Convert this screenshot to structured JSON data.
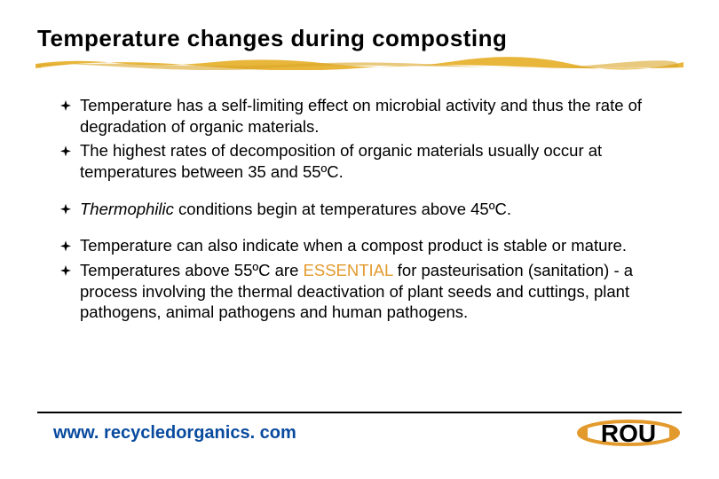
{
  "title": "Temperature changes during composting",
  "underline": {
    "color": "#e8b63a",
    "shadow": "#d9a528"
  },
  "bullets": [
    {
      "text_parts": [
        {
          "t": "Temperature has a self-limiting effect on microbial activity and thus the rate of degradation of organic materials."
        }
      ],
      "gap_below": false
    },
    {
      "text_parts": [
        {
          "t": "The highest rates of decomposition of organic materials usually occur at temperatures between 35 and 55ºC."
        }
      ],
      "gap_below": true
    },
    {
      "text_parts": [
        {
          "t": "Thermophilic",
          "style": "italic"
        },
        {
          "t": " conditions begin at temperatures above 45ºC."
        }
      ],
      "gap_below": true
    },
    {
      "text_parts": [
        {
          "t": "Temperature can also indicate when a compost product is stable or mature."
        }
      ],
      "gap_below": false
    },
    {
      "text_parts": [
        {
          "t": "Temperatures above 55ºC are "
        },
        {
          "t": "ESSENTIAL",
          "style": "essential"
        },
        {
          "t": " for pasteurisation (sanitation) - a process involving the thermal deactivation of plant seeds and cuttings, plant pathogens, animal pathogens and human pathogens."
        }
      ],
      "gap_below": false
    }
  ],
  "footer": {
    "url": "www. recycledorganics. com"
  },
  "logo": {
    "ring_color": "#e39a2d",
    "text_color": "#000000",
    "text": "ROU"
  }
}
